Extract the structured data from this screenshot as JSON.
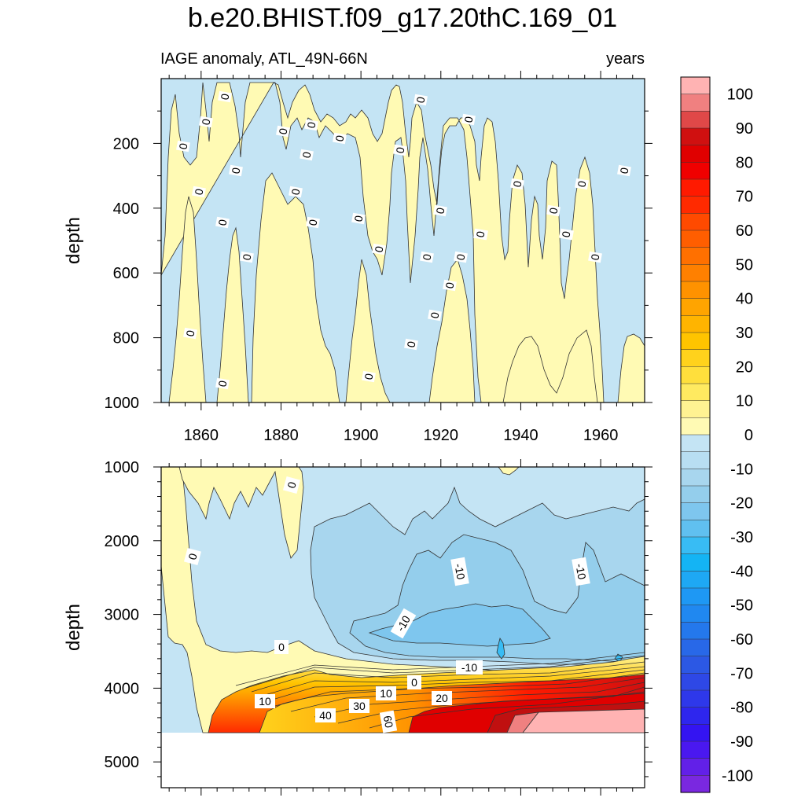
{
  "chart_data": {
    "type": "contour",
    "title": "b.e20.BHIST.f09_g17.20thC.169_01",
    "subtitle_left": "IAGE anomaly, ATL_49N-66N",
    "subtitle_right": "years",
    "colorbar": {
      "levels": [
        100,
        90,
        80,
        70,
        60,
        50,
        40,
        30,
        20,
        10,
        0,
        -10,
        -20,
        -30,
        -40,
        -50,
        -60,
        -70,
        -80,
        -90,
        -100
      ],
      "labels": [
        "100",
        "90",
        "80",
        "70",
        "60",
        "50",
        "40",
        "30",
        "20",
        "10",
        "0",
        "-10",
        "-20",
        "-30",
        "-40",
        "-50",
        "-60",
        "-70",
        "-80",
        "-90",
        "-100"
      ],
      "colors": [
        "#ffb3b3",
        "#f08080",
        "#e04848",
        "#d01010",
        "#e00000",
        "#f00000",
        "#ff1a00",
        "#ff2a00",
        "#ff4a00",
        "#ff5e00",
        "#ff7000",
        "#ff8000",
        "#ff9200",
        "#ffa400",
        "#ffb400",
        "#ffc400",
        "#ffd21c",
        "#ffdf3c",
        "#ffea60",
        "#fff292",
        "#fffab4",
        "#c4e4f4",
        "#b8def2",
        "#a8d6ee",
        "#94ceec",
        "#7ec6ee",
        "#60c0f0",
        "#38bcf4",
        "#14b4f4",
        "#1ea8f4",
        "#1e98f4",
        "#2088f0",
        "#2478ec",
        "#2868e8",
        "#2c58e4",
        "#2e48e6",
        "#2e38ea",
        "#2e26ee",
        "#3414f2",
        "#4a18f0",
        "#6220e8",
        "#7a28e0"
      ]
    },
    "top_panel": {
      "ylabel": "depth",
      "ylim": [
        0,
        1000
      ],
      "yticks": [
        200,
        400,
        600,
        800,
        1000
      ],
      "xlim": [
        1850,
        1971
      ],
      "xticks": [
        1860,
        1880,
        1900,
        1920,
        1940,
        1960
      ],
      "contour_labels": [
        "0",
        "0",
        "0",
        "0",
        "0",
        "0",
        "0",
        "0",
        "0",
        "0",
        "0",
        "0",
        "0",
        "0",
        "0",
        "0",
        "0",
        "0",
        "0",
        "0",
        "0",
        "0",
        "0",
        "0",
        "0",
        "0",
        "0",
        "0",
        "0",
        "0",
        "0",
        "0",
        "0",
        "0",
        "0",
        "0"
      ]
    },
    "bottom_panel": {
      "ylabel": "depth",
      "ylim": [
        1000,
        5350
      ],
      "yticks": [
        1000,
        2000,
        3000,
        4000,
        5000
      ],
      "xlim": [
        1850,
        1971
      ],
      "contour_labels": [
        "0",
        "0",
        "-10",
        "-10",
        "-10",
        "0",
        "-10",
        "0",
        "10",
        "10",
        "20",
        "40",
        "30",
        "60"
      ]
    }
  }
}
